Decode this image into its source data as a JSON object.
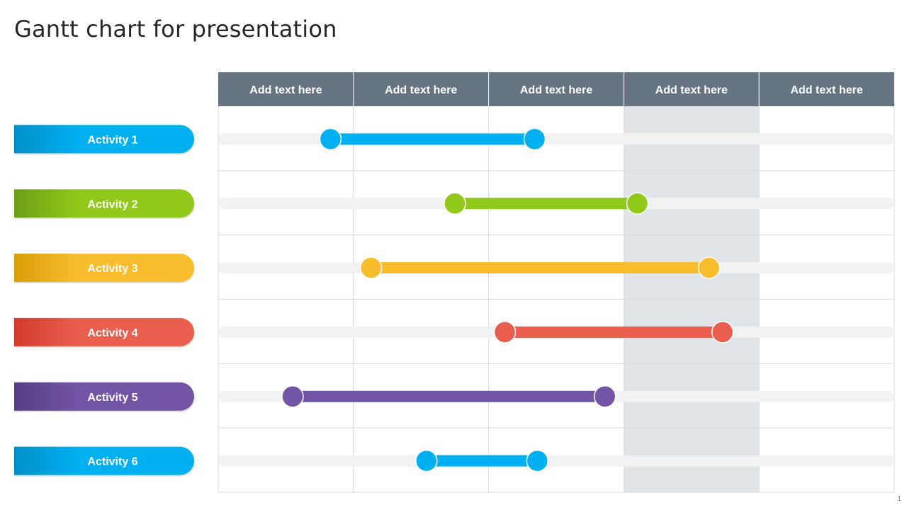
{
  "slide": {
    "title": "Gantt chart for presentation",
    "page_number": "1"
  },
  "chart_data": {
    "type": "gantt",
    "columns": [
      "Add text here",
      "Add text here",
      "Add text here",
      "Add text here",
      "Add text here"
    ],
    "highlighted_column_index": 3,
    "activities": [
      {
        "label": "Activity 1",
        "start": 0.83,
        "end": 2.34,
        "color": "#00B0F0",
        "color_dark": "#0090C8"
      },
      {
        "label": "Activity 2",
        "start": 1.75,
        "end": 3.1,
        "color": "#92C819",
        "color_dark": "#6E9E18"
      },
      {
        "label": "Activity 3",
        "start": 1.13,
        "end": 3.63,
        "color": "#F7BD2C",
        "color_dark": "#D99E07"
      },
      {
        "label": "Activity 4",
        "start": 2.12,
        "end": 3.73,
        "color": "#E95E4F",
        "color_dark": "#D43A2B"
      },
      {
        "label": "Activity 5",
        "start": 0.55,
        "end": 2.86,
        "color": "#7154A4",
        "color_dark": "#553E82"
      },
      {
        "label": "Activity 6",
        "start": 1.54,
        "end": 2.36,
        "color": "#00B0F0",
        "color_dark": "#0090C8"
      }
    ],
    "colors": {
      "header_bg": "#667481",
      "header_text": "#FFFFFF",
      "highlight_bg": "#E0E4E8",
      "grid_line": "#D9D9D9",
      "track": "#F2F2F2"
    }
  }
}
